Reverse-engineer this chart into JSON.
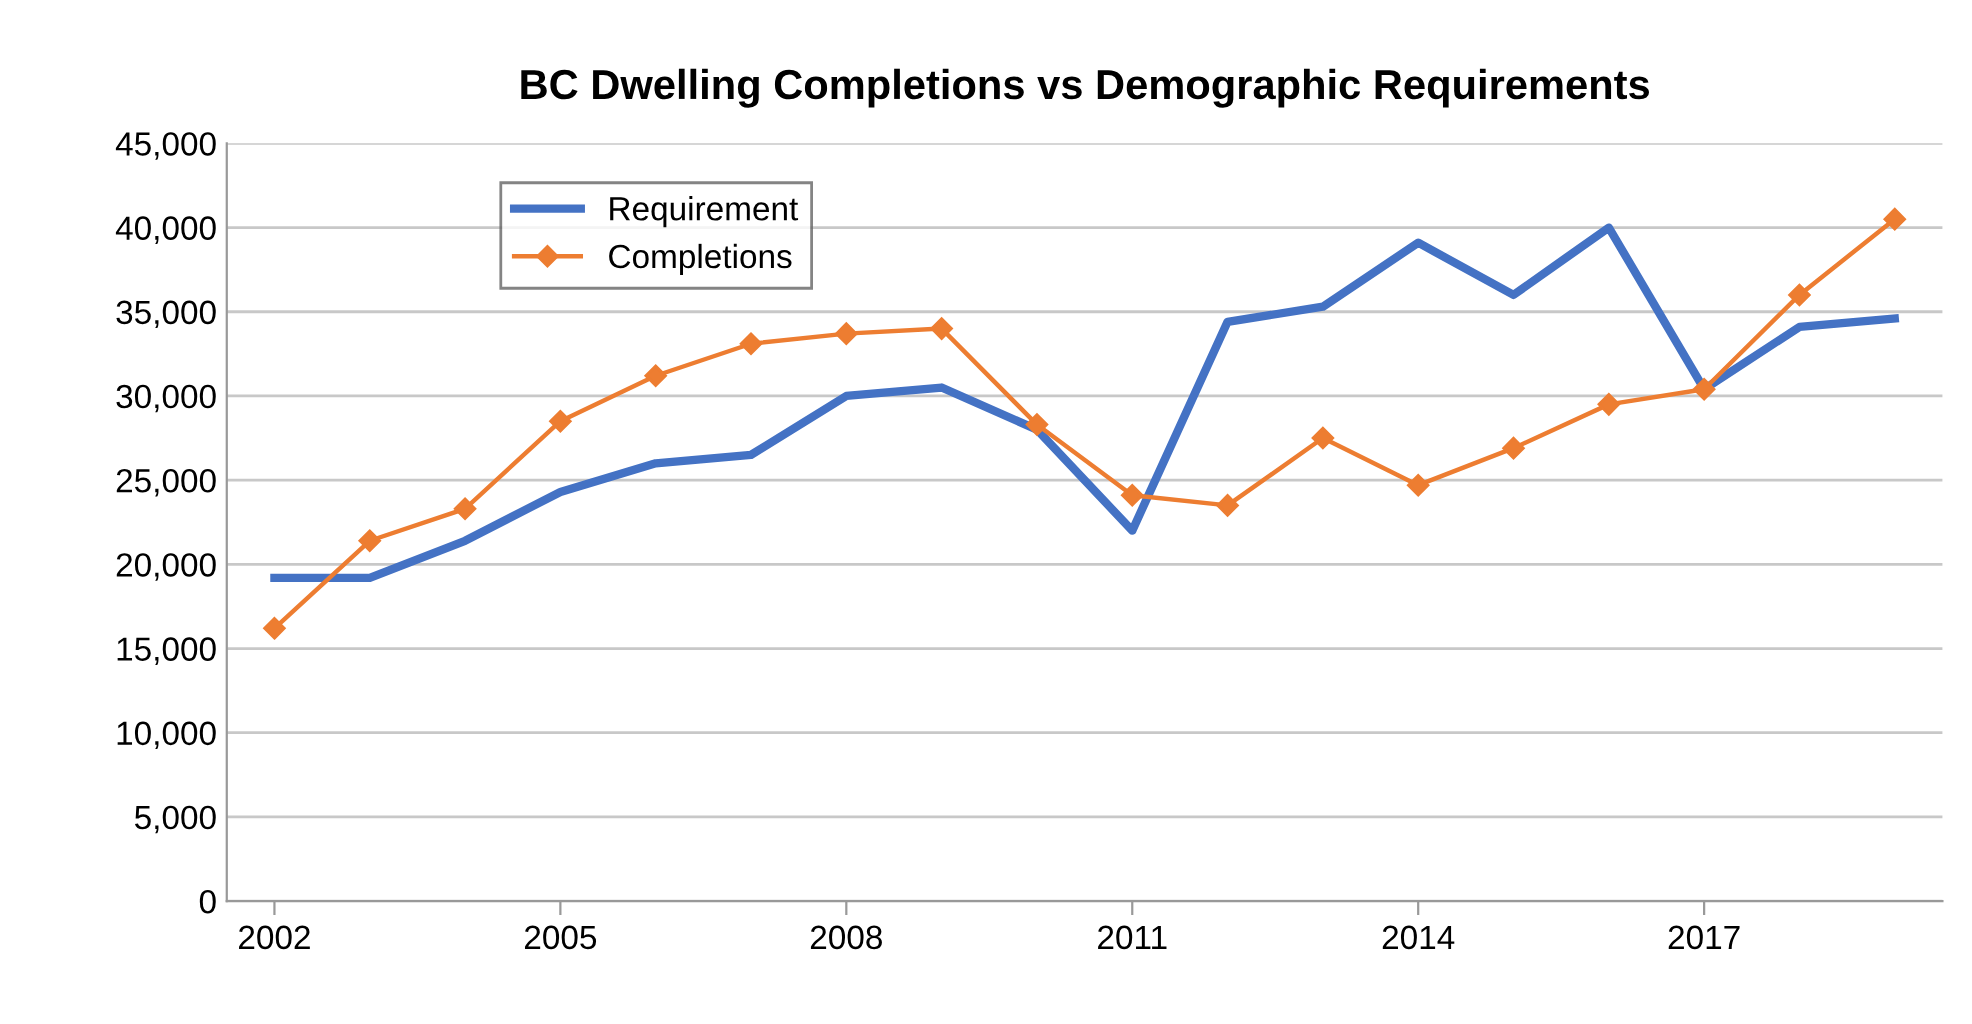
{
  "chart_data": {
    "type": "line",
    "title": "BC Dwelling Completions vs Demographic Requirements",
    "x": [
      2002,
      2003,
      2004,
      2005,
      2006,
      2007,
      2008,
      2009,
      2010,
      2011,
      2012,
      2013,
      2014,
      2015,
      2016,
      2017,
      2018,
      2019
    ],
    "series": [
      {
        "name": "Requirement",
        "color": "#4472c4",
        "marker": "none",
        "values": [
          19200,
          19200,
          21400,
          24300,
          26000,
          26500,
          30000,
          30500,
          28000,
          22000,
          34400,
          35300,
          39100,
          36000,
          40000,
          30400,
          34100,
          34600
        ]
      },
      {
        "name": "Completions",
        "color": "#ed7d31",
        "marker": "diamond",
        "values": [
          16200,
          21400,
          23300,
          28500,
          31200,
          33100,
          33700,
          34000,
          28300,
          24100,
          23500,
          27500,
          24700,
          26900,
          29500,
          30400,
          36000,
          40500
        ]
      }
    ],
    "xlim": [
      2001.5,
      2019.5
    ],
    "xticks": [
      2002,
      2005,
      2008,
      2011,
      2014,
      2017
    ],
    "ylim": [
      0,
      45000
    ],
    "yticks": [
      {
        "value": 0,
        "label": "0"
      },
      {
        "value": 5000,
        "label": "5,000"
      },
      {
        "value": 10000,
        "label": "10,000"
      },
      {
        "value": 15000,
        "label": "15,000"
      },
      {
        "value": 20000,
        "label": "20,000"
      },
      {
        "value": 25000,
        "label": "25,000"
      },
      {
        "value": 30000,
        "label": "30,000"
      },
      {
        "value": 35000,
        "label": "35,000"
      },
      {
        "value": 40000,
        "label": "40,000"
      },
      {
        "value": 45000,
        "label": "45,000"
      }
    ],
    "grid": "y",
    "legend": "top left"
  }
}
